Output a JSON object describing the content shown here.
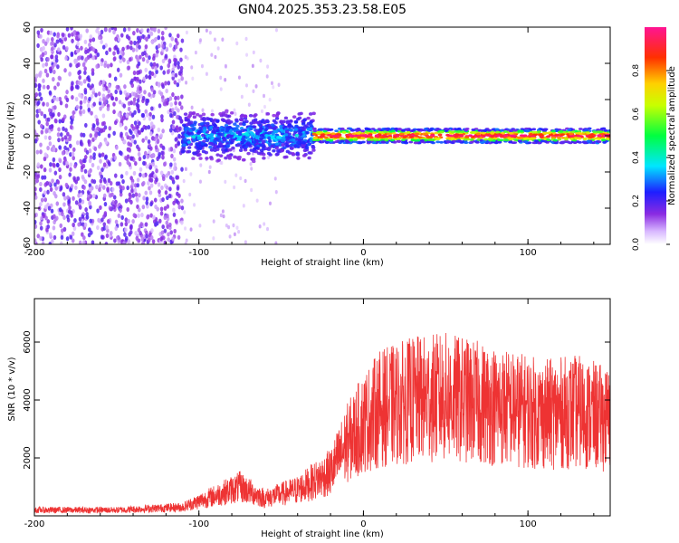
{
  "figure": {
    "title": "GN04.2025.353.23.58.E05"
  },
  "chart_data": [
    {
      "type": "heatmap",
      "title": "GN04.2025.353.23.58.E05",
      "xlabel": "Height of straight line (km)",
      "ylabel": "Frequency (Hz)",
      "xlim": [
        -200,
        150
      ],
      "ylim": [
        -60,
        60
      ],
      "xticks": [
        -200,
        -100,
        0,
        100
      ],
      "xtick_labels": [
        "-200",
        "-100",
        "0",
        "100"
      ],
      "yticks": [
        -60,
        -40,
        -20,
        0,
        20,
        40,
        60
      ],
      "ytick_labels": [
        "-60",
        "-40",
        "-20",
        "0",
        "20",
        "40",
        "60"
      ],
      "colorbar": {
        "label": "Normalized spectral amplitude",
        "range": [
          0.0,
          1.0
        ],
        "ticks": [
          0.0,
          0.2,
          0.4,
          0.6,
          0.8
        ],
        "tick_labels": [
          "0.0",
          "0.2",
          "0.4",
          "0.6",
          "0.8"
        ]
      },
      "description_regions": [
        {
          "x_range": [
            -200,
            -110
          ],
          "freq_range": [
            -60,
            60
          ],
          "amplitude": [
            0.05,
            0.2
          ]
        },
        {
          "x_range": [
            -110,
            -30
          ],
          "freq_range": [
            -12,
            12
          ],
          "amplitude": [
            0.1,
            0.35
          ]
        },
        {
          "x_range": [
            -30,
            150
          ],
          "freq_center": 0,
          "freq_halfwidth": 4,
          "amplitude": [
            0.7,
            1.0
          ]
        }
      ]
    },
    {
      "type": "line",
      "xlabel": "Height of straight line (km)",
      "ylabel": "SNR (10 * v/v)",
      "xlim": [
        -200,
        150
      ],
      "ylim": [
        0,
        7500
      ],
      "xticks": [
        -200,
        -100,
        0,
        100
      ],
      "xtick_labels": [
        "-200",
        "-100",
        "0",
        "100"
      ],
      "yticks": [
        2000,
        4000,
        6000
      ],
      "ytick_labels": [
        "2000",
        "4000",
        "6000"
      ],
      "color": "#ee3333",
      "series_envelope": [
        {
          "x": -200,
          "y": 200
        },
        {
          "x": -150,
          "y": 200
        },
        {
          "x": -110,
          "y": 300
        },
        {
          "x": -90,
          "y": 700
        },
        {
          "x": -75,
          "y": 1000
        },
        {
          "x": -60,
          "y": 600
        },
        {
          "x": -40,
          "y": 900
        },
        {
          "x": -20,
          "y": 1500
        },
        {
          "x": -10,
          "y": 2500
        },
        {
          "x": 0,
          "y": 3200
        },
        {
          "x": 10,
          "y": 3700
        },
        {
          "x": 30,
          "y": 4000
        },
        {
          "x": 50,
          "y": 4100
        },
        {
          "x": 70,
          "y": 3900
        },
        {
          "x": 90,
          "y": 3700
        },
        {
          "x": 110,
          "y": 3500
        },
        {
          "x": 130,
          "y": 3600
        },
        {
          "x": 150,
          "y": 3300
        }
      ]
    }
  ]
}
